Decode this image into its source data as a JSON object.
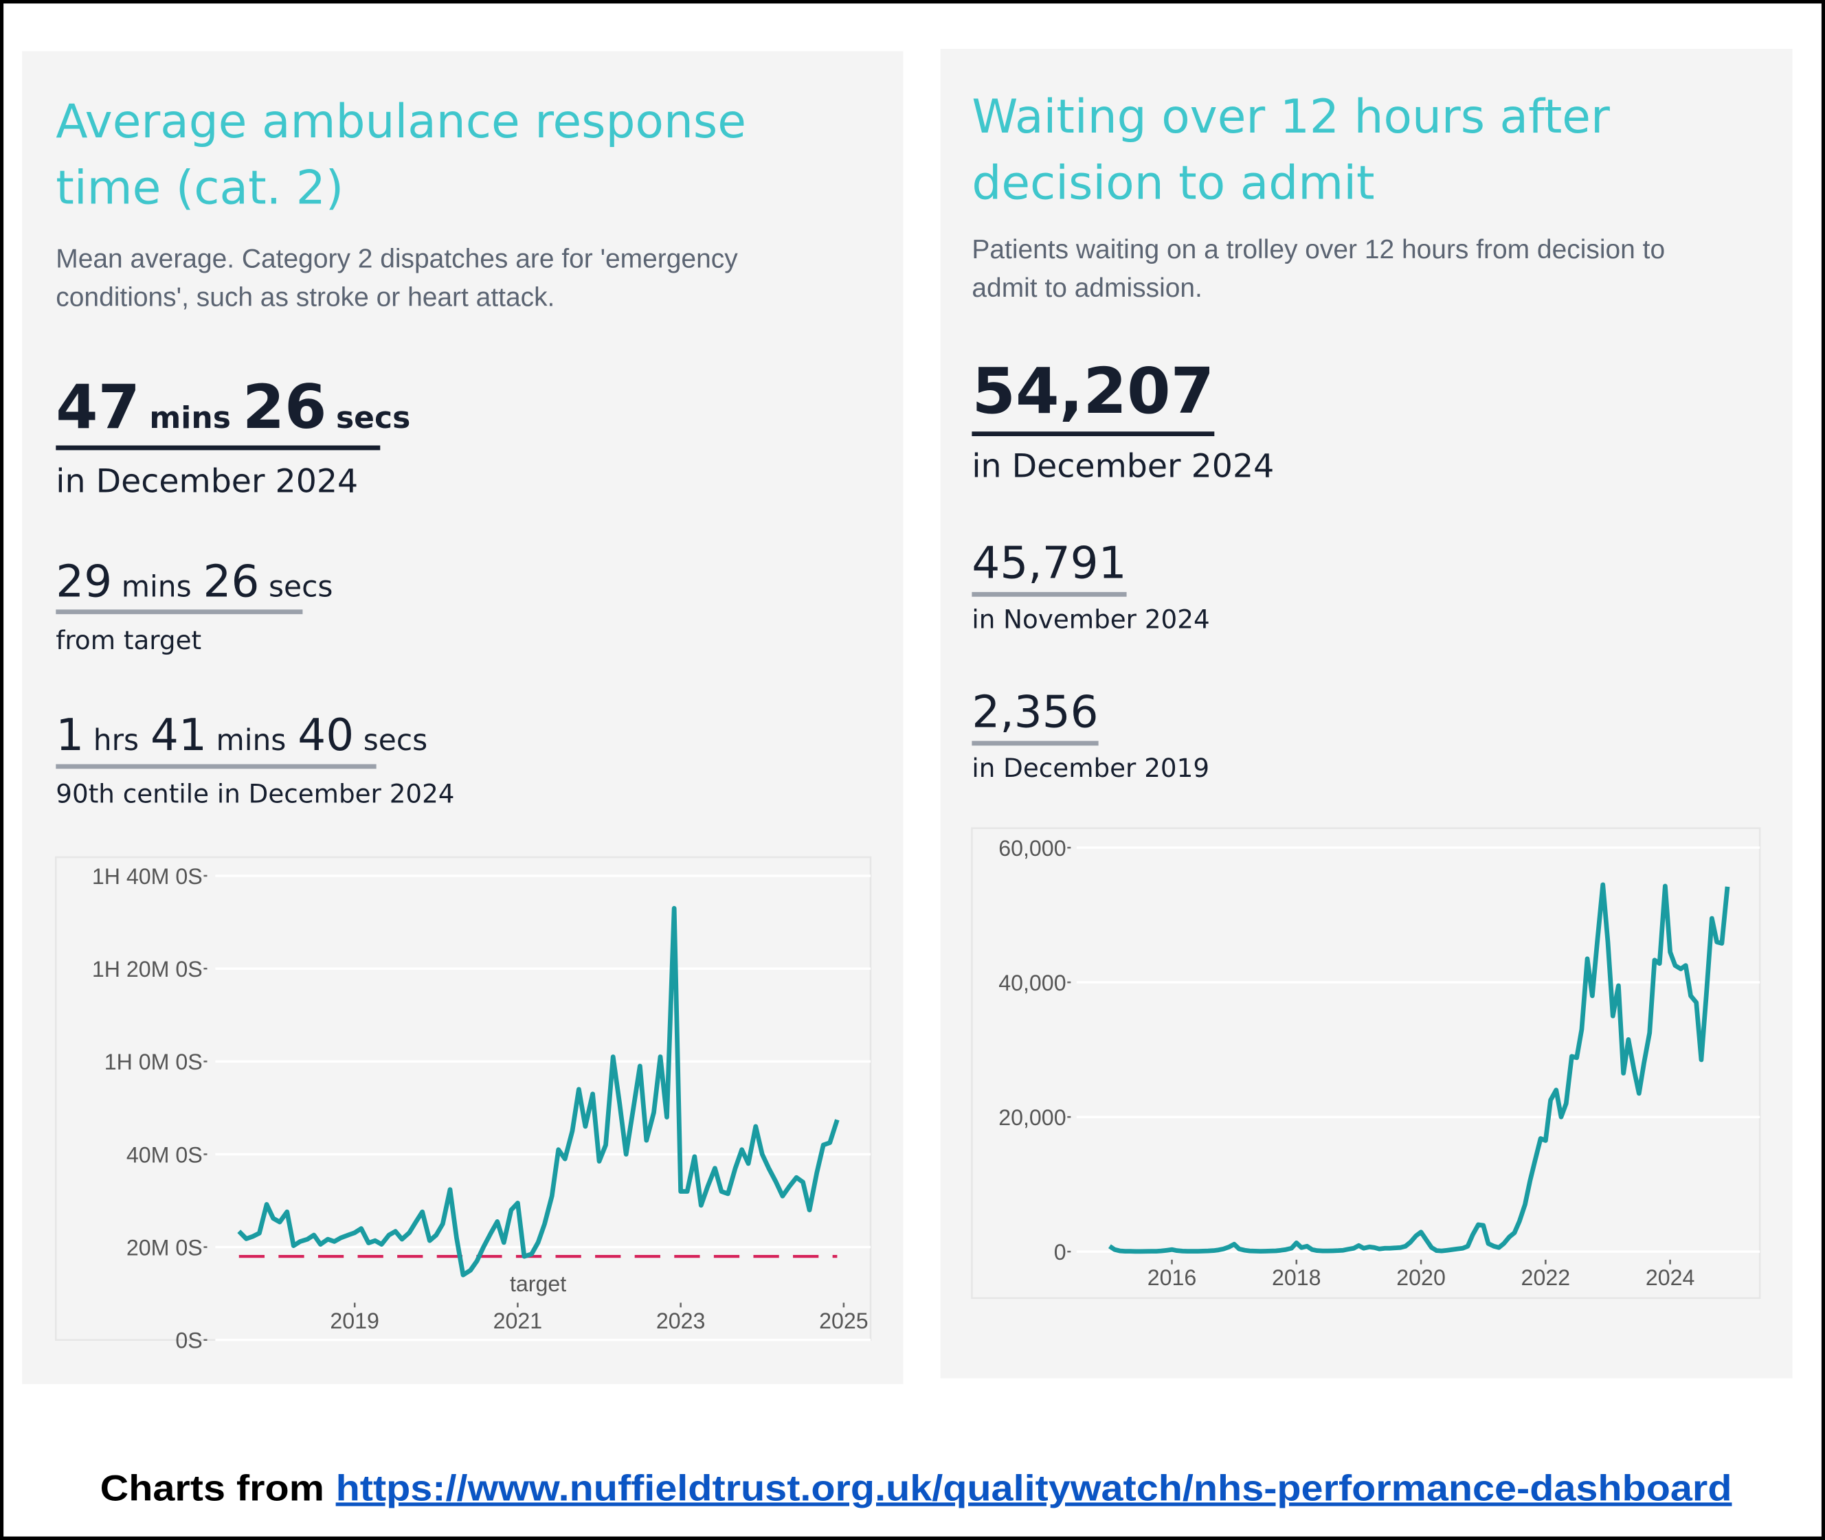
{
  "chart_data": [
    {
      "type": "line",
      "title": "Average ambulance response time (cat. 2)",
      "subtitle": "Mean average. Category 2 dispatches are for 'emergency conditions', such as stroke or heart attack.",
      "stats": [
        {
          "parts": [
            {
              "number": 47,
              "unit": "mins"
            },
            {
              "number": 26,
              "unit": "secs"
            }
          ],
          "caption": "in December 2024"
        },
        {
          "parts": [
            {
              "number": 29,
              "unit": "mins"
            },
            {
              "number": 26,
              "unit": "secs"
            }
          ],
          "caption": "from target"
        },
        {
          "parts": [
            {
              "number": 1,
              "unit": "hrs"
            },
            {
              "number": 41,
              "unit": "mins"
            },
            {
              "number": 40,
              "unit": "secs"
            }
          ],
          "caption": "90th centile in December 2024"
        }
      ],
      "x": [
        2017.58,
        2017.67,
        2017.75,
        2017.83,
        2017.92,
        2018,
        2018.08,
        2018.17,
        2018.25,
        2018.33,
        2018.42,
        2018.5,
        2018.58,
        2018.67,
        2018.75,
        2018.83,
        2018.92,
        2019,
        2019.08,
        2019.17,
        2019.25,
        2019.33,
        2019.42,
        2019.5,
        2019.58,
        2019.67,
        2019.75,
        2019.83,
        2019.92,
        2020,
        2020.08,
        2020.17,
        2020.25,
        2020.33,
        2020.42,
        2020.5,
        2020.58,
        2020.67,
        2020.75,
        2020.83,
        2020.92,
        2021,
        2021.08,
        2021.17,
        2021.25,
        2021.33,
        2021.42,
        2021.5,
        2021.58,
        2021.67,
        2021.75,
        2021.83,
        2021.92,
        2022,
        2022.08,
        2022.17,
        2022.25,
        2022.33,
        2022.42,
        2022.5,
        2022.58,
        2022.67,
        2022.75,
        2022.83,
        2022.92,
        2023,
        2023.08,
        2023.17,
        2023.25,
        2023.33,
        2023.42,
        2023.5,
        2023.58,
        2023.67,
        2023.75,
        2023.83,
        2023.92,
        2024,
        2024.08,
        2024.17,
        2024.25,
        2024.33,
        2024.42,
        2024.5,
        2024.58,
        2024.67,
        2024.75,
        2024.83,
        2024.92
      ],
      "series": [
        {
          "color": "#1a9ba1",
          "values": [
            23.4,
            21.8,
            22.3,
            23,
            29.2,
            26.2,
            25.4,
            27.6,
            20.3,
            21.2,
            21.7,
            22.6,
            20.6,
            21.7,
            21.2,
            22,
            22.6,
            23.1,
            24,
            20.9,
            21.4,
            20.6,
            22.6,
            23.4,
            21.7,
            23.1,
            25.4,
            27.6,
            21.4,
            22.6,
            25,
            32.4,
            22,
            14,
            15,
            17,
            20,
            23,
            25.5,
            21,
            28,
            29.5,
            18,
            18.5,
            21,
            25,
            31,
            41,
            39,
            45,
            54,
            46,
            53,
            38.5,
            42,
            61,
            51,
            40,
            50,
            59,
            43,
            49,
            61,
            48,
            93,
            32,
            32,
            39.5,
            29,
            33,
            37,
            32,
            31.5,
            37,
            41,
            38,
            46,
            40,
            37,
            34,
            31,
            33,
            35,
            34,
            28,
            36,
            42,
            42.5,
            47.43
          ]
        }
      ],
      "target": {
        "value": 18,
        "label": "target",
        "color": "#d6235a"
      },
      "xlim": [
        2017.29,
        2025.33
      ],
      "xticks": [
        2019,
        2021,
        2023,
        2025
      ],
      "ylim": [
        0,
        104
      ],
      "yticks": [
        {
          "value": 0,
          "label": "0S"
        },
        {
          "value": 20,
          "label": "20M 0S"
        },
        {
          "value": 40,
          "label": "40M 0S"
        },
        {
          "value": 60,
          "label": "1H 0M 0S"
        },
        {
          "value": 80,
          "label": "1H 20M 0S"
        },
        {
          "value": 100,
          "label": "1H 40M 0S"
        }
      ],
      "grid": true
    },
    {
      "type": "line",
      "title": "Waiting over 12 hours after decision to admit",
      "subtitle": "Patients waiting on a trolley over 12 hours from decision to admit to admission.",
      "stats": [
        {
          "parts": [
            {
              "number": "54,207"
            }
          ],
          "caption": "in December 2024"
        },
        {
          "parts": [
            {
              "number": "45,791"
            }
          ],
          "caption": "in November 2024"
        },
        {
          "parts": [
            {
              "number": "2,356"
            }
          ],
          "caption": "in December 2019"
        }
      ],
      "x": [
        2015,
        2015.08,
        2015.17,
        2015.25,
        2015.33,
        2015.42,
        2015.5,
        2015.58,
        2015.67,
        2015.75,
        2015.83,
        2015.92,
        2016,
        2016.08,
        2016.17,
        2016.25,
        2016.33,
        2016.42,
        2016.5,
        2016.58,
        2016.67,
        2016.75,
        2016.83,
        2016.92,
        2017,
        2017.08,
        2017.17,
        2017.25,
        2017.33,
        2017.42,
        2017.5,
        2017.58,
        2017.67,
        2017.75,
        2017.83,
        2017.92,
        2018,
        2018.08,
        2018.17,
        2018.25,
        2018.33,
        2018.42,
        2018.5,
        2018.58,
        2018.67,
        2018.75,
        2018.83,
        2018.92,
        2019,
        2019.08,
        2019.17,
        2019.25,
        2019.33,
        2019.42,
        2019.5,
        2019.58,
        2019.67,
        2019.75,
        2019.83,
        2019.92,
        2020,
        2020.08,
        2020.17,
        2020.25,
        2020.33,
        2020.42,
        2020.5,
        2020.58,
        2020.67,
        2020.75,
        2020.83,
        2020.92,
        2021,
        2021.08,
        2021.17,
        2021.25,
        2021.33,
        2021.42,
        2021.5,
        2021.58,
        2021.67,
        2021.75,
        2021.83,
        2021.92,
        2022,
        2022.08,
        2022.17,
        2022.25,
        2022.33,
        2022.42,
        2022.5,
        2022.58,
        2022.67,
        2022.75,
        2022.83,
        2022.92,
        2023,
        2023.08,
        2023.17,
        2023.25,
        2023.33,
        2023.42,
        2023.5,
        2023.58,
        2023.67,
        2023.75,
        2023.83,
        2023.92,
        2024,
        2024.08,
        2024.17,
        2024.25,
        2024.33,
        2024.42,
        2024.5,
        2024.58,
        2024.67,
        2024.75,
        2024.83,
        2024.92
      ],
      "series": [
        {
          "color": "#1a9ba1",
          "values": [
            800,
            300,
            100,
            50,
            50,
            30,
            30,
            40,
            50,
            60,
            100,
            200,
            300,
            150,
            80,
            60,
            50,
            60,
            80,
            100,
            150,
            250,
            400,
            700,
            1100,
            400,
            200,
            100,
            80,
            60,
            70,
            90,
            120,
            200,
            300,
            500,
            1300,
            600,
            800,
            300,
            150,
            100,
            100,
            120,
            150,
            200,
            350,
            500,
            900,
            500,
            700,
            600,
            400,
            500,
            500,
            550,
            600,
            800,
            1400,
            2356,
            2900,
            1800,
            600,
            150,
            100,
            200,
            300,
            400,
            500,
            800,
            2500,
            4000,
            3900,
            1200,
            800,
            600,
            1200,
            2200,
            2800,
            4500,
            7000,
            10500,
            13500,
            16800,
            16500,
            22500,
            24000,
            20000,
            22000,
            29000,
            28800,
            33000,
            43500,
            38000,
            46000,
            54500,
            46000,
            35000,
            39500,
            26500,
            31500,
            27000,
            23500,
            28000,
            32500,
            43300,
            42800,
            54300,
            44500,
            42500,
            42000,
            42500,
            38000,
            37000,
            28500,
            38000,
            49500,
            46000,
            45791,
            54207
          ]
        }
      ],
      "xlim": [
        2014.47,
        2025.44
      ],
      "xticks": [
        2016,
        2018,
        2020,
        2022,
        2024
      ],
      "ylim": [
        -6900,
        62900
      ],
      "yticks": [
        0,
        {
          "value": 20000,
          "label": "20,000"
        },
        {
          "value": 40000,
          "label": "40,000"
        },
        {
          "value": 60000,
          "label": "60,000"
        }
      ],
      "grid": true
    }
  ],
  "footer": {
    "text": "Charts from",
    "link": "https://www.nuffieldtrust.org.uk/qualitywatch/nhs-performance-dashboard"
  }
}
